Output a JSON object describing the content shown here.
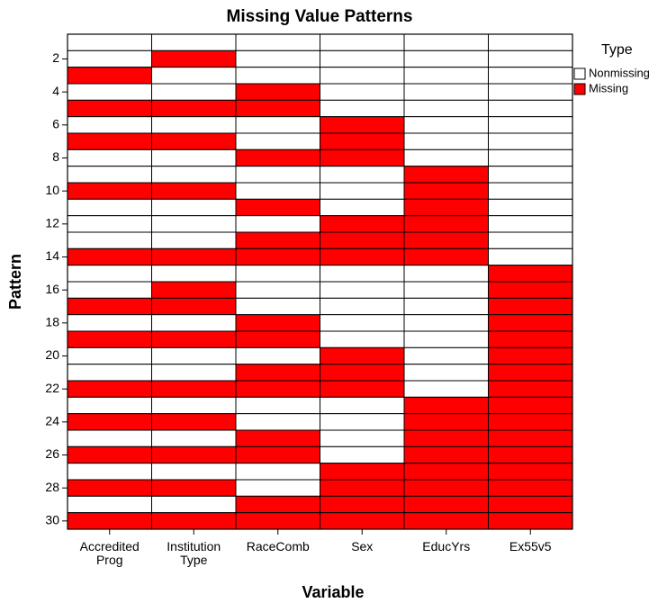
{
  "chart_data": {
    "type": "heatmap",
    "title": "Missing Value Patterns",
    "x_label": "Variable",
    "y_label": "Pattern",
    "categories": [
      "Accredited Prog",
      "Institution Type",
      "RaceComb",
      "Sex",
      "EducYrs",
      "Ex55v5"
    ],
    "y": [
      1,
      2,
      3,
      4,
      5,
      6,
      7,
      8,
      9,
      10,
      11,
      12,
      13,
      14,
      15,
      16,
      17,
      18,
      19,
      20,
      21,
      22,
      23,
      24,
      25,
      26,
      27,
      28,
      29,
      30
    ],
    "ylim": [
      0.5,
      30.5
    ],
    "yticks": [
      2,
      4,
      6,
      8,
      10,
      12,
      14,
      16,
      18,
      20,
      22,
      24,
      26,
      28,
      30
    ],
    "legend_title": "Type",
    "legend": [
      {
        "name": "Nonmissing",
        "color": "#ffffff"
      },
      {
        "name": "Missing",
        "color": "#ff0000"
      }
    ],
    "z": [
      [
        0,
        0,
        0,
        0,
        0,
        0
      ],
      [
        0,
        1,
        0,
        0,
        0,
        0
      ],
      [
        1,
        0,
        0,
        0,
        0,
        0
      ],
      [
        0,
        0,
        1,
        0,
        0,
        0
      ],
      [
        1,
        1,
        1,
        0,
        0,
        0
      ],
      [
        0,
        0,
        0,
        1,
        0,
        0
      ],
      [
        1,
        1,
        0,
        1,
        0,
        0
      ],
      [
        0,
        0,
        1,
        1,
        0,
        0
      ],
      [
        0,
        0,
        0,
        0,
        1,
        0
      ],
      [
        1,
        1,
        0,
        0,
        1,
        0
      ],
      [
        0,
        0,
        1,
        0,
        1,
        0
      ],
      [
        0,
        0,
        0,
        1,
        1,
        0
      ],
      [
        0,
        0,
        1,
        1,
        1,
        0
      ],
      [
        1,
        1,
        1,
        1,
        1,
        0
      ],
      [
        0,
        0,
        0,
        0,
        0,
        1
      ],
      [
        0,
        1,
        0,
        0,
        0,
        1
      ],
      [
        1,
        1,
        0,
        0,
        0,
        1
      ],
      [
        0,
        0,
        1,
        0,
        0,
        1
      ],
      [
        1,
        1,
        1,
        0,
        0,
        1
      ],
      [
        0,
        0,
        0,
        1,
        0,
        1
      ],
      [
        0,
        0,
        1,
        1,
        0,
        1
      ],
      [
        1,
        1,
        1,
        1,
        0,
        1
      ],
      [
        0,
        0,
        0,
        0,
        1,
        1
      ],
      [
        1,
        1,
        0,
        0,
        1,
        1
      ],
      [
        0,
        0,
        1,
        0,
        1,
        1
      ],
      [
        1,
        1,
        1,
        0,
        1,
        1
      ],
      [
        0,
        0,
        0,
        1,
        1,
        1
      ],
      [
        1,
        1,
        0,
        1,
        1,
        1
      ],
      [
        0,
        0,
        1,
        1,
        1,
        1
      ],
      [
        1,
        1,
        1,
        1,
        1,
        1
      ]
    ]
  }
}
